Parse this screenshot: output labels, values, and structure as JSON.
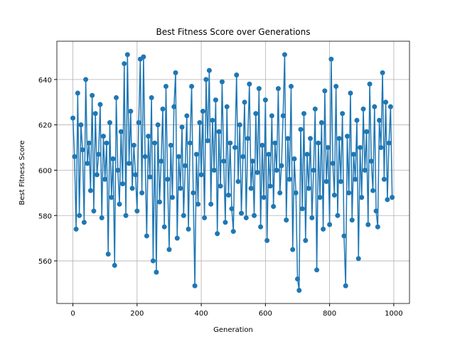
{
  "chart_data": {
    "type": "line",
    "title": "Best Fitness Score over Generations",
    "xlabel": "Generation",
    "ylabel": "Best Fitness Score",
    "x": [
      0,
      5,
      10,
      15,
      20,
      25,
      30,
      35,
      40,
      45,
      50,
      55,
      60,
      65,
      70,
      75,
      80,
      85,
      90,
      95,
      100,
      105,
      110,
      115,
      120,
      125,
      130,
      135,
      140,
      145,
      150,
      155,
      160,
      165,
      170,
      175,
      180,
      185,
      190,
      195,
      200,
      205,
      210,
      215,
      220,
      225,
      230,
      235,
      240,
      245,
      250,
      255,
      260,
      265,
      270,
      275,
      280,
      285,
      290,
      295,
      300,
      305,
      310,
      315,
      320,
      325,
      330,
      335,
      340,
      345,
      350,
      355,
      360,
      365,
      370,
      375,
      380,
      385,
      390,
      395,
      400,
      405,
      410,
      415,
      420,
      425,
      430,
      435,
      440,
      445,
      450,
      455,
      460,
      465,
      470,
      475,
      480,
      485,
      490,
      495,
      500,
      505,
      510,
      515,
      520,
      525,
      530,
      535,
      540,
      545,
      550,
      555,
      560,
      565,
      570,
      575,
      580,
      585,
      590,
      595,
      600,
      605,
      610,
      615,
      620,
      625,
      630,
      635,
      640,
      645,
      650,
      655,
      660,
      665,
      670,
      675,
      680,
      685,
      690,
      695,
      700,
      705,
      710,
      715,
      720,
      725,
      730,
      735,
      740,
      745,
      750,
      755,
      760,
      765,
      770,
      775,
      780,
      785,
      790,
      795,
      800,
      805,
      810,
      815,
      820,
      825,
      830,
      835,
      840,
      845,
      850,
      855,
      860,
      865,
      870,
      875,
      880,
      885,
      890,
      895,
      900,
      905,
      910,
      915,
      920,
      925,
      930,
      935,
      940,
      945,
      950,
      955,
      960,
      965,
      970,
      975,
      980,
      985,
      990,
      995
    ],
    "series": [
      {
        "name": "Best Fitness",
        "color": "#1f77b4",
        "values": [
          623,
          606,
          574,
          634,
          580,
          620,
          609,
          577,
          640,
          603,
          612,
          591,
          633,
          582,
          625,
          598,
          607,
          629,
          579,
          615,
          596,
          612,
          563,
          621,
          588,
          605,
          558,
          632,
          600,
          585,
          617,
          594,
          647,
          580,
          651,
          603,
          626,
          592,
          611,
          598,
          582,
          621,
          649,
          590,
          650,
          606,
          571,
          615,
          597,
          632,
          560,
          612,
          555,
          620,
          586,
          604,
          627,
          575,
          637,
          596,
          565,
          611,
          588,
          628,
          643,
          570,
          606,
          592,
          619,
          580,
          602,
          624,
          574,
          612,
          637,
          590,
          549,
          607,
          585,
          621,
          598,
          626,
          579,
          640,
          613,
          644,
          585,
          622,
          600,
          631,
          572,
          617,
          593,
          639,
          604,
          577,
          628,
          589,
          612,
          583,
          573,
          610,
          642,
          595,
          620,
          581,
          606,
          630,
          579,
          614,
          638,
          592,
          604,
          580,
          625,
          599,
          636,
          575,
          611,
          588,
          631,
          569,
          607,
          593,
          624,
          584,
          612,
          600,
          636,
          590,
          602,
          624,
          651,
          578,
          614,
          596,
          637,
          565,
          605,
          590,
          552,
          547,
          618,
          583,
          625,
          569,
          607,
          592,
          614,
          579,
          600,
          627,
          556,
          612,
          588,
          621,
          574,
          635,
          595,
          610,
          576,
          649,
          603,
          589,
          637,
          580,
          614,
          595,
          625,
          571,
          549,
          615,
          590,
          634,
          578,
          607,
          596,
          622,
          561,
          610,
          588,
          627,
          600,
          617,
          576,
          638,
          604,
          591,
          628,
          582,
          575,
          622,
          610,
          643,
          596,
          630,
          587,
          612,
          628,
          588
        ]
      }
    ],
    "xlim": [
      -50,
      1049
    ],
    "ylim": [
      541.2,
      656.9
    ],
    "xticks": [
      0,
      200,
      400,
      600,
      800,
      1000
    ],
    "yticks": [
      560,
      580,
      600,
      620,
      640
    ],
    "grid": true
  }
}
